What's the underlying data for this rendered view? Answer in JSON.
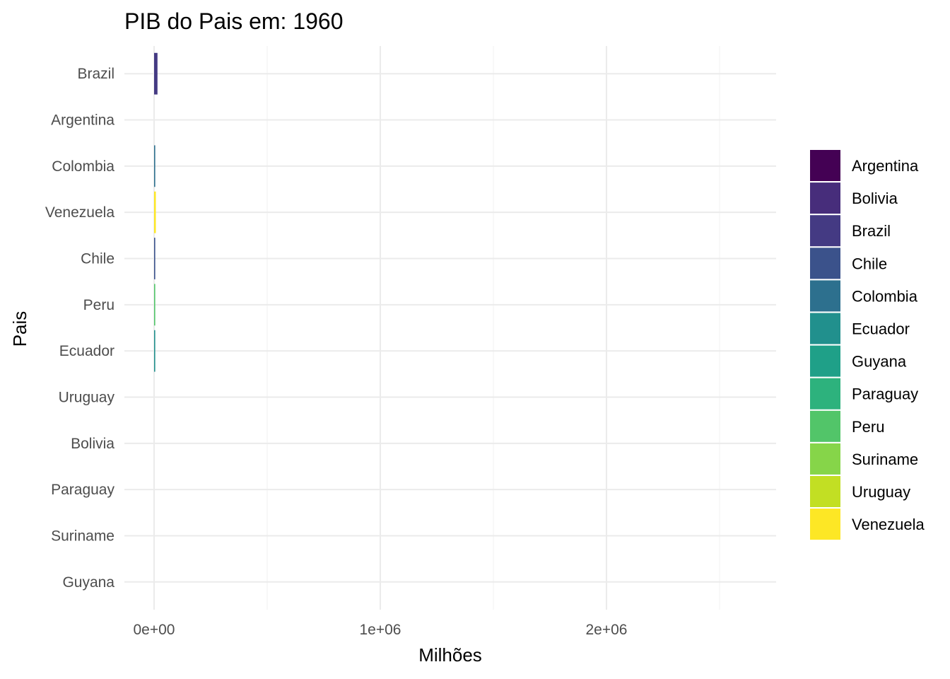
{
  "chart_data": {
    "type": "bar",
    "orientation": "horizontal",
    "title": "PIB do Pais em: 1960",
    "xlabel": "Milhões",
    "ylabel": "Pais",
    "categories": [
      "Brazil",
      "Argentina",
      "Colombia",
      "Venezuela",
      "Chile",
      "Peru",
      "Ecuador",
      "Uruguay",
      "Bolivia",
      "Paraguay",
      "Suriname",
      "Guyana"
    ],
    "values": [
      15000,
      0,
      4000,
      7700,
      4100,
      2600,
      1000,
      0,
      0,
      0,
      0,
      0
    ],
    "colors": [
      "#443a83",
      "#440154",
      "#2d708e",
      "#fde725",
      "#3b528b",
      "#52c569",
      "#21908d",
      "#c2df23",
      "#472d7b",
      "#2db27d",
      "#86d549",
      "#1fa088"
    ],
    "xlim": [
      -200000,
      2700000
    ],
    "x_ticks": [
      0,
      1000000,
      2000000
    ],
    "x_tick_labels": [
      "0e+00",
      "1e+06",
      "2e+06"
    ],
    "grid": true,
    "legend": {
      "position": "right",
      "entries": [
        {
          "label": "Argentina",
          "color": "#440154"
        },
        {
          "label": "Bolivia",
          "color": "#472d7b"
        },
        {
          "label": "Brazil",
          "color": "#443a83"
        },
        {
          "label": "Chile",
          "color": "#3b528b"
        },
        {
          "label": "Colombia",
          "color": "#2d708e"
        },
        {
          "label": "Ecuador",
          "color": "#21908d"
        },
        {
          "label": "Guyana",
          "color": "#1fa088"
        },
        {
          "label": "Paraguay",
          "color": "#2db27d"
        },
        {
          "label": "Peru",
          "color": "#52c569"
        },
        {
          "label": "Suriname",
          "color": "#86d549"
        },
        {
          "label": "Uruguay",
          "color": "#c2df23"
        },
        {
          "label": "Venezuela",
          "color": "#fde725"
        }
      ]
    }
  }
}
